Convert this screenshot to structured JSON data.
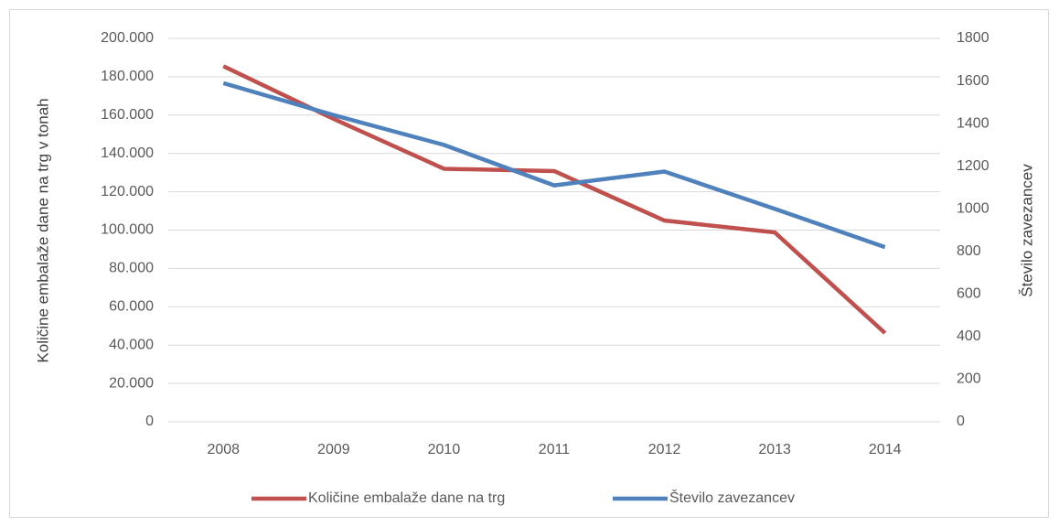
{
  "chart_data": {
    "type": "line",
    "categories": [
      "2008",
      "2009",
      "2010",
      "2011",
      "2012",
      "2013",
      "2014"
    ],
    "series": [
      {
        "name": "Količine embalaže dane na trg",
        "color": "#c0504d",
        "values": [
          185500,
          158000,
          132000,
          130800,
          105000,
          98800,
          46300
        ]
      },
      {
        "name": "Število zavezancev",
        "color": "#4f81bd",
        "axis": "y2",
        "values": [
          1590,
          1440,
          1300,
          1110,
          1175,
          1000,
          820
        ]
      }
    ],
    "y_label": "Količine embalaže dane na trg v tonah",
    "y2_label": "Število zavezancev",
    "ylim": [
      0,
      200000
    ],
    "yticks": [
      0,
      {
        "value": 20000,
        "label": "20.000"
      },
      {
        "value": 40000,
        "label": "40.000"
      },
      {
        "value": 60000,
        "label": "60.000"
      },
      {
        "value": 80000,
        "label": "80.000"
      },
      {
        "value": 100000,
        "label": "100.000"
      },
      {
        "value": 120000,
        "label": "120.000"
      },
      {
        "value": 140000,
        "label": "140.000"
      },
      {
        "value": 160000,
        "label": "160.000"
      },
      {
        "value": 180000,
        "label": "180.000"
      },
      {
        "value": 200000,
        "label": "200.000"
      }
    ],
    "y2lim": [
      0,
      1800
    ],
    "y2ticks": [
      0,
      200,
      400,
      600,
      800,
      1000,
      1200,
      1400,
      1600,
      1800
    ],
    "grid": true,
    "legend": "bottom"
  }
}
